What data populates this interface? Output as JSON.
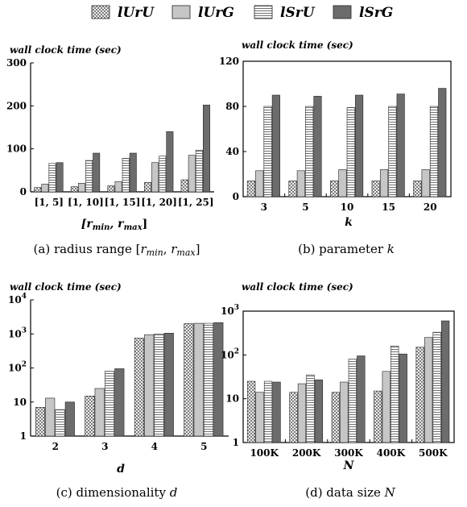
{
  "legend": [
    "lUrU",
    "lUrG",
    "lSrU",
    "lSrG"
  ],
  "chart_data": [
    {
      "type": "bar",
      "ylabel": "wall clock time (sec)",
      "xlabel_main": "[r",
      "xlabel_sub1": "min",
      "xlabel_mid": ", r",
      "xlabel_sub2": "max",
      "xlabel_end": "]",
      "caption_prefix": "(a)  radius range [",
      "caption_r1": "r",
      "caption_s1": "min",
      "caption_mid": ", ",
      "caption_r2": "r",
      "caption_s2": "max",
      "caption_suffix": "]",
      "categories": [
        "[1, 5]",
        "[1, 10]",
        "[1, 15]",
        "[1, 20]",
        "[1, 25]"
      ],
      "yscale": "linear",
      "ylim": [
        0,
        300
      ],
      "yticks": [
        "0",
        "100",
        "200",
        "300"
      ],
      "series": [
        {
          "name": "lUrU",
          "values": [
            10,
            12,
            14,
            22,
            28
          ]
        },
        {
          "name": "lUrG",
          "values": [
            18,
            20,
            24,
            68,
            85
          ]
        },
        {
          "name": "lSrU",
          "values": [
            66,
            73,
            78,
            83,
            97
          ]
        },
        {
          "name": "lSrG",
          "values": [
            68,
            90,
            90,
            140,
            202
          ]
        }
      ]
    },
    {
      "type": "bar",
      "ylabel": "wall clock time (sec)",
      "xlabel": "k",
      "caption_prefix": "(b)  parameter ",
      "caption_var": "k",
      "categories": [
        "3",
        "5",
        "10",
        "15",
        "20"
      ],
      "yscale": "linear",
      "ylim": [
        0,
        120
      ],
      "yticks": [
        "0",
        "40",
        "80",
        "120"
      ],
      "series": [
        {
          "name": "lUrU",
          "values": [
            14,
            14,
            14,
            14,
            14
          ]
        },
        {
          "name": "lUrG",
          "values": [
            23,
            23,
            24,
            24,
            24
          ]
        },
        {
          "name": "lSrU",
          "values": [
            80,
            80,
            79,
            80,
            80
          ]
        },
        {
          "name": "lSrG",
          "values": [
            90,
            89,
            90,
            91,
            96
          ]
        }
      ]
    },
    {
      "type": "bar",
      "ylabel": "wall clock time (sec)",
      "xlabel": "d",
      "caption_prefix": "(c)  dimensionality ",
      "caption_var": "d",
      "categories": [
        "2",
        "3",
        "4",
        "5"
      ],
      "yscale": "log",
      "ylim": [
        1,
        10000
      ],
      "yticks": [
        "1",
        "10",
        "10^2",
        "10^3",
        "10^4"
      ],
      "series": [
        {
          "name": "lUrU",
          "values": [
            7,
            15,
            750,
            2000
          ]
        },
        {
          "name": "lUrG",
          "values": [
            13,
            25,
            950,
            2050
          ]
        },
        {
          "name": "lSrU",
          "values": [
            6,
            80,
            1000,
            2050
          ]
        },
        {
          "name": "lSrG",
          "values": [
            10,
            95,
            1050,
            2150
          ]
        }
      ]
    },
    {
      "type": "bar",
      "ylabel": "wall clock time (sec)",
      "xlabel": "N",
      "caption_prefix": "(d)  data size ",
      "caption_var": "N",
      "categories": [
        "100K",
        "200K",
        "300K",
        "400K",
        "500K"
      ],
      "yscale": "log",
      "ylim": [
        1,
        1000
      ],
      "yticks": [
        "1",
        "10",
        "10^2",
        "10^3"
      ],
      "series": [
        {
          "name": "lUrU",
          "values": [
            25,
            14,
            14,
            15,
            150
          ]
        },
        {
          "name": "lUrG",
          "values": [
            14,
            22,
            24,
            42,
            250
          ]
        },
        {
          "name": "lSrU",
          "values": [
            25,
            35,
            80,
            160,
            330
          ]
        },
        {
          "name": "lSrG",
          "values": [
            24,
            27,
            95,
            105,
            600
          ]
        }
      ]
    }
  ]
}
